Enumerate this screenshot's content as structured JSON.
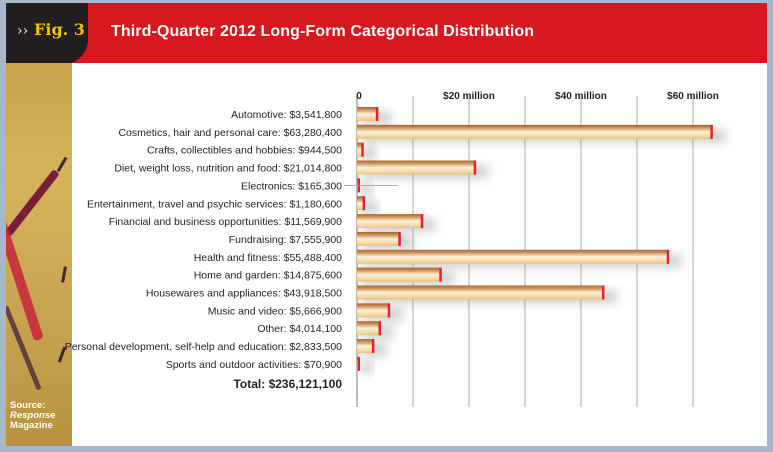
{
  "header": {
    "fig_arrows": "››",
    "fig_label": "Fig. 3",
    "title": "Third-Quarter 2012 Long-Form Categorical Distribution"
  },
  "sidebar": {
    "image": "clock-face-photo",
    "source_prefix": "Source:",
    "source_name": "Response",
    "source_suffix": "Magazine"
  },
  "colors": {
    "header_red": "#d7181f",
    "fig_tab": "#231f20",
    "fig_label": "#f2c300",
    "bar_light": "#f6e2b8",
    "bar_dark": "#b8743c",
    "bar_cap": "#e8202a",
    "grid": "#c8c8c8",
    "frame": "#a9b7cc"
  },
  "chart_data": {
    "type": "bar",
    "orientation": "horizontal",
    "title": "Third-Quarter 2012 Long-Form Categorical Distribution",
    "xlabel": "",
    "ylabel": "",
    "xlim": [
      0,
      66000000
    ],
    "grid": true,
    "gridlines": [
      0,
      10000000,
      20000000,
      30000000,
      40000000,
      50000000,
      60000000
    ],
    "ticks": [
      {
        "value": 0,
        "label": "0"
      },
      {
        "value": 20000000,
        "label": "$20 million"
      },
      {
        "value": 40000000,
        "label": "$40 million"
      },
      {
        "value": 60000000,
        "label": "$60 million"
      }
    ],
    "categories": [
      "Automotive: $3,541,800",
      "Cosmetics, hair and personal care: $63,280,400",
      "Crafts, collectibles and hobbies: $944,500",
      "Diet, weight loss, nutrition and food: $21,014,800",
      "Electronics: $165,300",
      "Entertainment, travel and psychic services: $1,180,600",
      "Financial and business opportunities: $11,569,900",
      "Fundraising: $7,555,900",
      "Health and fitness: $55,488,400",
      "Home and garden: $14,875,600",
      "Housewares and appliances: $43,918,500",
      "Music and video: $5,666,900",
      "Other: $4,014,100",
      "Personal development, self-help and education: $2,833,500",
      "Sports and outdoor activities: $70,900"
    ],
    "values": [
      3541800,
      63280400,
      944500,
      21014800,
      165300,
      1180600,
      11569900,
      7555900,
      55488400,
      14875600,
      43918500,
      5666900,
      4014100,
      2833500,
      70900
    ],
    "leader_line_category": "Electronics: $165,300",
    "total_label": "Total: $236,121,100",
    "total": 236121100
  }
}
